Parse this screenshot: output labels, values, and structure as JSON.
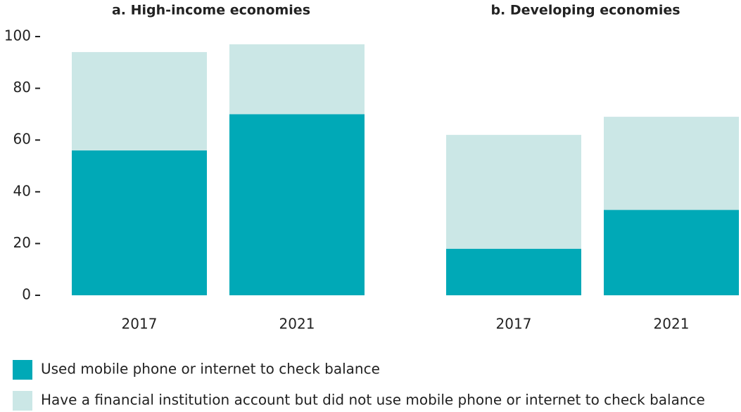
{
  "chart_data": [
    {
      "type": "stacked_bar",
      "title": "a. High-income economies",
      "categories": [
        "2017",
        "2021"
      ],
      "series": [
        {
          "name": "Used mobile phone or internet to check balance",
          "color": "#00a9b7",
          "values": [
            56,
            70
          ]
        },
        {
          "name": "Have a financial institution account but did not use mobile phone or internet to check balance",
          "color": "#cbe7e6",
          "values": [
            38,
            27
          ]
        }
      ],
      "ylim": [
        0,
        100
      ],
      "yticks": [
        0,
        20,
        40,
        60,
        80,
        100
      ]
    },
    {
      "type": "stacked_bar",
      "title": "b. Developing economies",
      "categories": [
        "2017",
        "2021"
      ],
      "series": [
        {
          "color": "#00a9b7",
          "values": [
            18,
            33
          ]
        },
        {
          "color": "#cbe7e6",
          "values": [
            44,
            36
          ]
        }
      ],
      "ylim": [
        0,
        100
      ]
    }
  ]
}
